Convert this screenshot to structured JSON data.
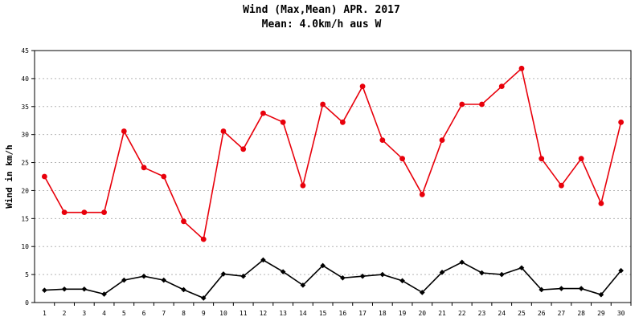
{
  "chart_data": {
    "type": "line",
    "title": "Wind (Max,Mean) APR. 2017",
    "subtitle": "Mean: 4.0km/h aus W",
    "xlabel": "",
    "ylabel": "Wind in km/h",
    "ylim": [
      0,
      45
    ],
    "yticks": [
      0,
      5,
      10,
      15,
      20,
      25,
      30,
      35,
      40,
      45
    ],
    "categories": [
      "1",
      "2",
      "3",
      "4",
      "5",
      "6",
      "7",
      "8",
      "9",
      "10",
      "11",
      "12",
      "13",
      "14",
      "15",
      "16",
      "17",
      "18",
      "19",
      "20",
      "21",
      "22",
      "23",
      "24",
      "25",
      "26",
      "27",
      "28",
      "29",
      "30"
    ],
    "grid": true,
    "legend": "none",
    "series": [
      {
        "color": "#e8000b",
        "marker": "circle",
        "values": [
          22.5,
          16.1,
          16.1,
          16.1,
          30.6,
          24.1,
          22.5,
          14.5,
          11.3,
          30.6,
          27.4,
          33.8,
          32.2,
          20.9,
          35.4,
          32.2,
          38.6,
          29.0,
          25.7,
          19.3,
          29.0,
          35.4,
          35.4,
          38.6,
          41.8,
          25.7,
          20.9,
          25.7,
          17.7,
          32.2
        ]
      },
      {
        "color": "#000000",
        "marker": "diamond",
        "values": [
          2.2,
          2.4,
          2.4,
          1.5,
          4.0,
          4.7,
          4.0,
          2.3,
          0.8,
          5.1,
          4.7,
          7.6,
          5.5,
          3.1,
          6.6,
          4.4,
          4.7,
          5.0,
          3.9,
          1.8,
          5.4,
          7.2,
          5.3,
          5.0,
          6.2,
          2.3,
          2.5,
          2.5,
          1.4,
          5.7
        ]
      }
    ]
  }
}
